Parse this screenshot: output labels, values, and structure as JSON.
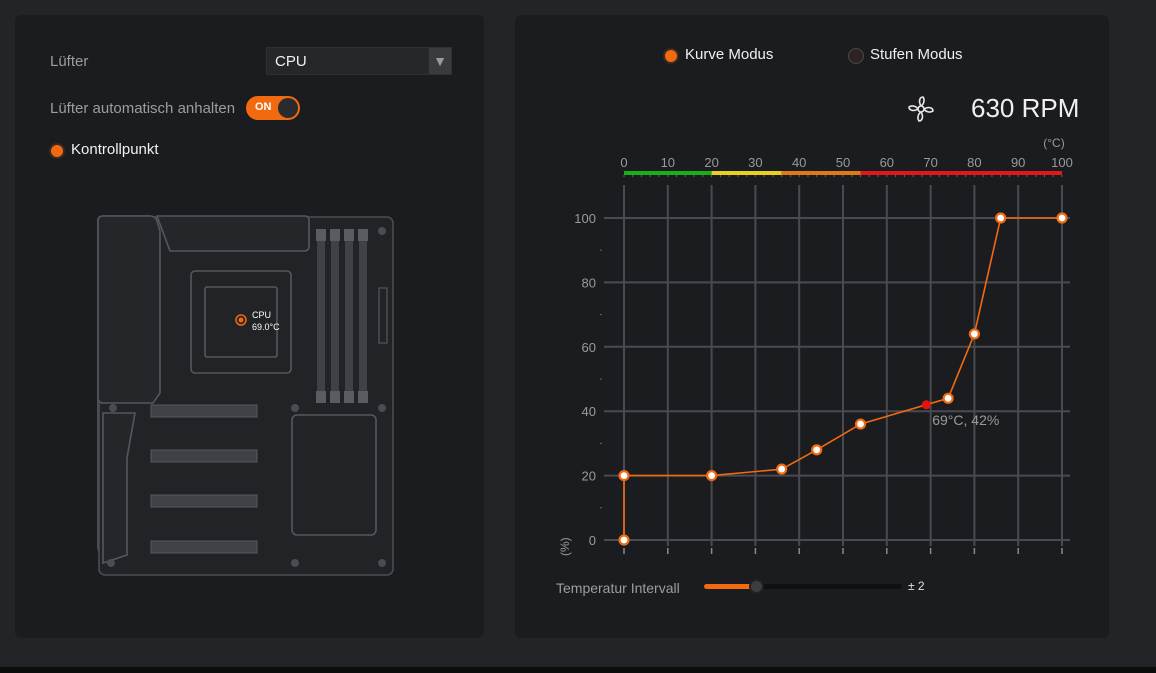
{
  "left": {
    "fan_label": "Lüfter",
    "fan_select_value": "CPU",
    "auto_stop_label": "Lüfter automatisch anhalten",
    "auto_stop_toggle": "ON",
    "control_point_label": "Kontrollpunkt",
    "cpu_sensor_name": "CPU",
    "cpu_sensor_temp": "69.0°C"
  },
  "right": {
    "mode_curve_label": "Kurve Modus",
    "mode_step_label": "Stufen Modus",
    "selected_mode": "curve",
    "fan_speed": "630 RPM",
    "fan_icon": "fan-icon",
    "interval_label": "Temperatur Intervall",
    "interval_value": "± 2",
    "interval_level": 0.27
  },
  "chart_data": {
    "type": "line",
    "x_unit_label": "(°C)",
    "y_unit_label": "(%)",
    "x_ticks": [
      "0",
      "10",
      "20",
      "30",
      "40",
      "50",
      "60",
      "70",
      "80",
      "90",
      "100"
    ],
    "y_ticks": [
      "0",
      "20",
      "40",
      "60",
      "80",
      "100"
    ],
    "xlim": [
      0,
      100
    ],
    "ylim": [
      0,
      100
    ],
    "points": [
      {
        "x": 0,
        "y": 0
      },
      {
        "x": 0,
        "y": 20
      },
      {
        "x": 20,
        "y": 20
      },
      {
        "x": 36,
        "y": 22
      },
      {
        "x": 44,
        "y": 28
      },
      {
        "x": 54,
        "y": 36
      },
      {
        "x": 74,
        "y": 44
      },
      {
        "x": 80,
        "y": 64
      },
      {
        "x": 86,
        "y": 100
      },
      {
        "x": 100,
        "y": 100
      }
    ],
    "current_point": {
      "x": 69,
      "y": 42
    },
    "current_label": "69°C, 42%",
    "temp_color_bands": [
      {
        "from": 0,
        "to": 20,
        "color": "#18b018"
      },
      {
        "from": 20,
        "to": 36,
        "color": "#e8d020"
      },
      {
        "from": 36,
        "to": 54,
        "color": "#e07818"
      },
      {
        "from": 54,
        "to": 100,
        "color": "#e01818"
      }
    ],
    "line_color": "#f26a10",
    "current_color": "#e81010"
  }
}
